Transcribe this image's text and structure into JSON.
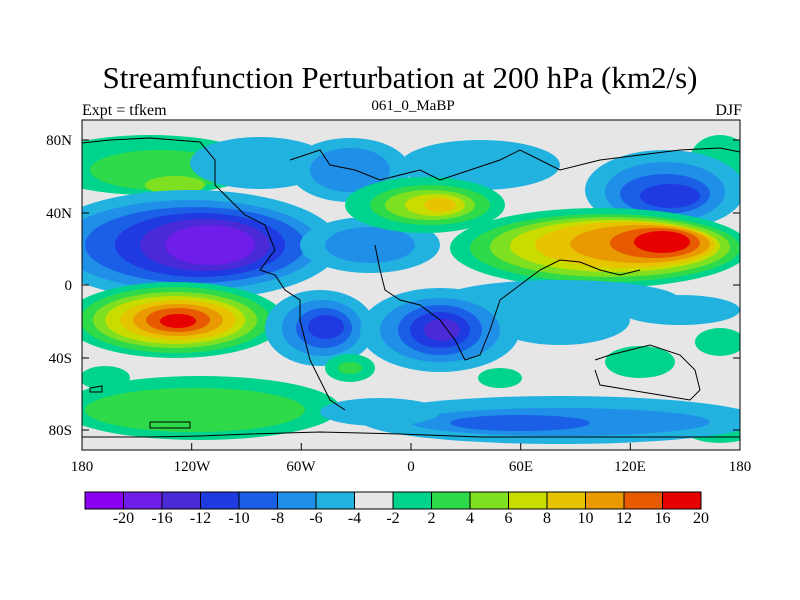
{
  "title": "Streamfunction Perturbation at 200 hPa (km2/s)",
  "left_string": "Expt = tfkem",
  "center_string": "061_0_MaBP",
  "right_string": "DJF",
  "lat_labels": [
    "80N",
    "40N",
    "0",
    "40S",
    "80S"
  ],
  "lon_labels": [
    "180",
    "120W",
    "60W",
    "0",
    "60E",
    "120E",
    "180"
  ],
  "colorbar": {
    "levels": [
      "-20",
      "-16",
      "-12",
      "-10",
      "-8",
      "-6",
      "-4",
      "-2",
      "2",
      "4",
      "6",
      "8",
      "10",
      "12",
      "16",
      "20"
    ],
    "colors": [
      "#8a00f0",
      "#6e1ee8",
      "#4a2ad6",
      "#1e3ae0",
      "#1a5fe6",
      "#1f8fe8",
      "#22b2e0",
      "#e6e6e6",
      "#00d48c",
      "#2ed94a",
      "#7ee020",
      "#c8dc00",
      "#e6c400",
      "#e89a00",
      "#e85a00",
      "#e60000"
    ]
  },
  "map": {
    "lon_range": [
      -180,
      180
    ],
    "lat_range": [
      -90,
      90
    ],
    "neutral_color": "#e6e6e6"
  }
}
